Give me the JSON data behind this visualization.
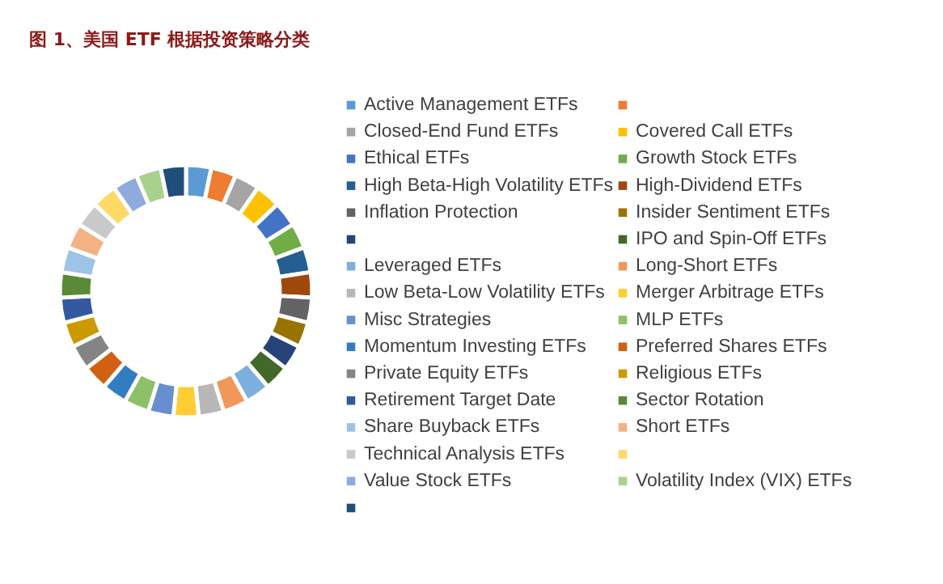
{
  "chart_data": {
    "type": "donut",
    "title": "图 1、美国 ETF 根据投资策略分类",
    "categories": [
      "Active Management ETFs",
      null,
      "Closed-End Fund ETFs",
      "Covered Call ETFs",
      "Ethical ETFs",
      "Growth Stock ETFs",
      "High Beta-High Volatility ETFs",
      "High-Dividend ETFs",
      "Inflation Protection",
      "Insider Sentiment ETFs",
      null,
      "IPO and Spin-Off ETFs",
      "Leveraged ETFs",
      "Long-Short ETFs",
      "Low Beta-Low Volatility ETFs",
      "Merger Arbitrage ETFs",
      "Misc Strategies",
      "MLP ETFs",
      "Momentum Investing ETFs",
      "Preferred Shares ETFs",
      "Private Equity ETFs",
      "Religious ETFs",
      "Retirement Target Date",
      "Sector Rotation",
      "Share Buyback ETFs",
      "Short ETFs",
      "Technical Analysis ETFs",
      null,
      "Value Stock ETFs",
      "Volatility Index (VIX) ETFs",
      null
    ],
    "values": [
      3.23,
      3.23,
      3.23,
      3.23,
      3.23,
      3.23,
      3.23,
      3.23,
      3.23,
      3.23,
      3.23,
      3.23,
      3.23,
      3.23,
      3.23,
      3.23,
      3.23,
      3.23,
      3.23,
      3.23,
      3.23,
      3.23,
      3.23,
      3.23,
      3.23,
      3.23,
      3.23,
      3.23,
      3.23,
      3.23,
      3.23
    ],
    "colors": [
      "#5b9bd5",
      "#ed7d31",
      "#a5a5a5",
      "#ffc000",
      "#4472c4",
      "#70ad47",
      "#255e91",
      "#9e480e",
      "#636363",
      "#997300",
      "#264478",
      "#43682b",
      "#7cafdd",
      "#f1975a",
      "#b7b7b7",
      "#ffcd33",
      "#698ed0",
      "#8cc168",
      "#327dc2",
      "#d26012",
      "#848484",
      "#cc9a00",
      "#335aa1",
      "#5a8a39",
      "#9dc3e6",
      "#f4b183",
      "#c9c9c9",
      "#ffd966",
      "#8faadc",
      "#a9d18e",
      "#1f4e79"
    ],
    "legend": "right"
  }
}
